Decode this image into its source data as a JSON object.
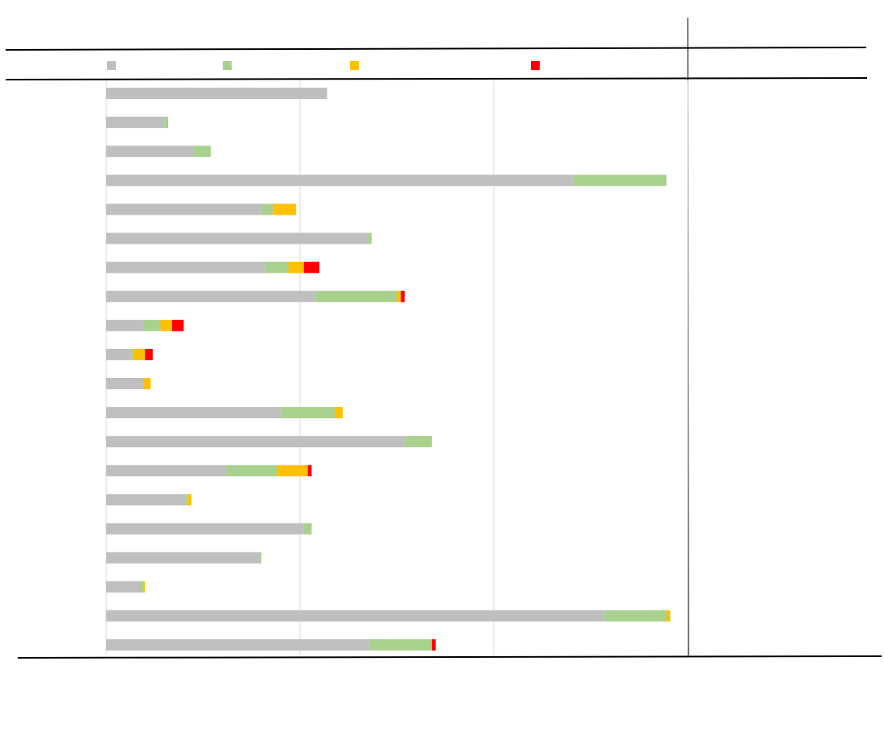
{
  "chart_data": {
    "type": "bar",
    "orientation": "horizontal",
    "stacked": true,
    "xlim": [
      0,
      3
    ],
    "grid": true,
    "legend": "top",
    "categories": [
      "",
      "",
      "",
      "",
      "",
      "",
      "",
      "",
      "",
      "",
      "",
      "",
      "",
      "",
      "",
      "",
      "",
      "",
      "",
      ""
    ],
    "colors": {
      "series_1": "#bfbfbf",
      "series_2": "#a9d18e",
      "series_3": "#ffc000",
      "series_4": "#ff0000"
    },
    "series": [
      {
        "key": "series_1",
        "values": [
          1.14,
          0.3,
          0.45,
          2.41,
          0.8,
          1.35,
          0.82,
          1.08,
          0.19,
          0.13,
          0.19,
          0.9,
          1.54,
          0.62,
          0.41,
          1.02,
          0.79,
          0.17,
          2.57,
          1.36
        ]
      },
      {
        "key": "series_2",
        "values": [
          0.0,
          0.02,
          0.09,
          0.48,
          0.06,
          0.02,
          0.12,
          0.42,
          0.09,
          0.01,
          0.0,
          0.28,
          0.14,
          0.26,
          0.01,
          0.04,
          0.01,
          0.02,
          0.32,
          0.32
        ]
      },
      {
        "key": "series_3",
        "values": [
          0,
          0,
          0,
          0,
          0.12,
          0,
          0.08,
          0.02,
          0.06,
          0.06,
          0.04,
          0.04,
          0,
          0.16,
          0.02,
          0,
          0,
          0.01,
          0.02,
          0
        ]
      },
      {
        "key": "series_4",
        "values": [
          0,
          0,
          0,
          0,
          0,
          0,
          0.08,
          0.02,
          0.06,
          0.04,
          0,
          0,
          0,
          0.02,
          0,
          0,
          0,
          0,
          0,
          0.02
        ]
      }
    ]
  }
}
